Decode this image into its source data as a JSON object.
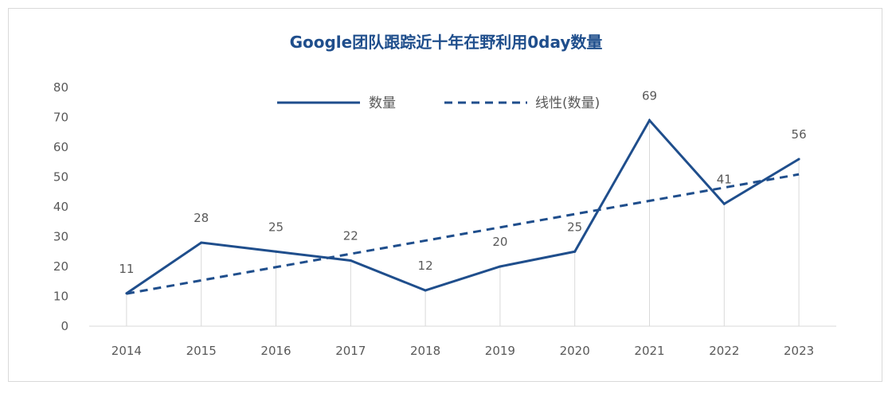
{
  "chart_data": {
    "type": "line",
    "title": "Google团队跟踪近十年在野利用0day数量",
    "xlabel": "",
    "ylabel": "",
    "x": [
      "2014",
      "2015",
      "2016",
      "2017",
      "2018",
      "2019",
      "2020",
      "2021",
      "2022",
      "2023"
    ],
    "ylim": [
      0,
      80
    ],
    "yticks": [
      0,
      10,
      20,
      30,
      40,
      50,
      60,
      70,
      80
    ],
    "series": [
      {
        "name": "数量",
        "values": [
          11,
          28,
          25,
          22,
          12,
          20,
          25,
          69,
          41,
          56
        ],
        "data_labels": [
          "11",
          "28",
          "25",
          "22",
          "12",
          "20",
          "25",
          "69",
          "41",
          "56"
        ],
        "color": "#1f4e8c",
        "style": "solid"
      },
      {
        "name": "线性(数量)",
        "type": "trendline-linear",
        "color": "#1f4e8c",
        "style": "dashed"
      }
    ],
    "grid": false,
    "legend_position": "top-center"
  }
}
